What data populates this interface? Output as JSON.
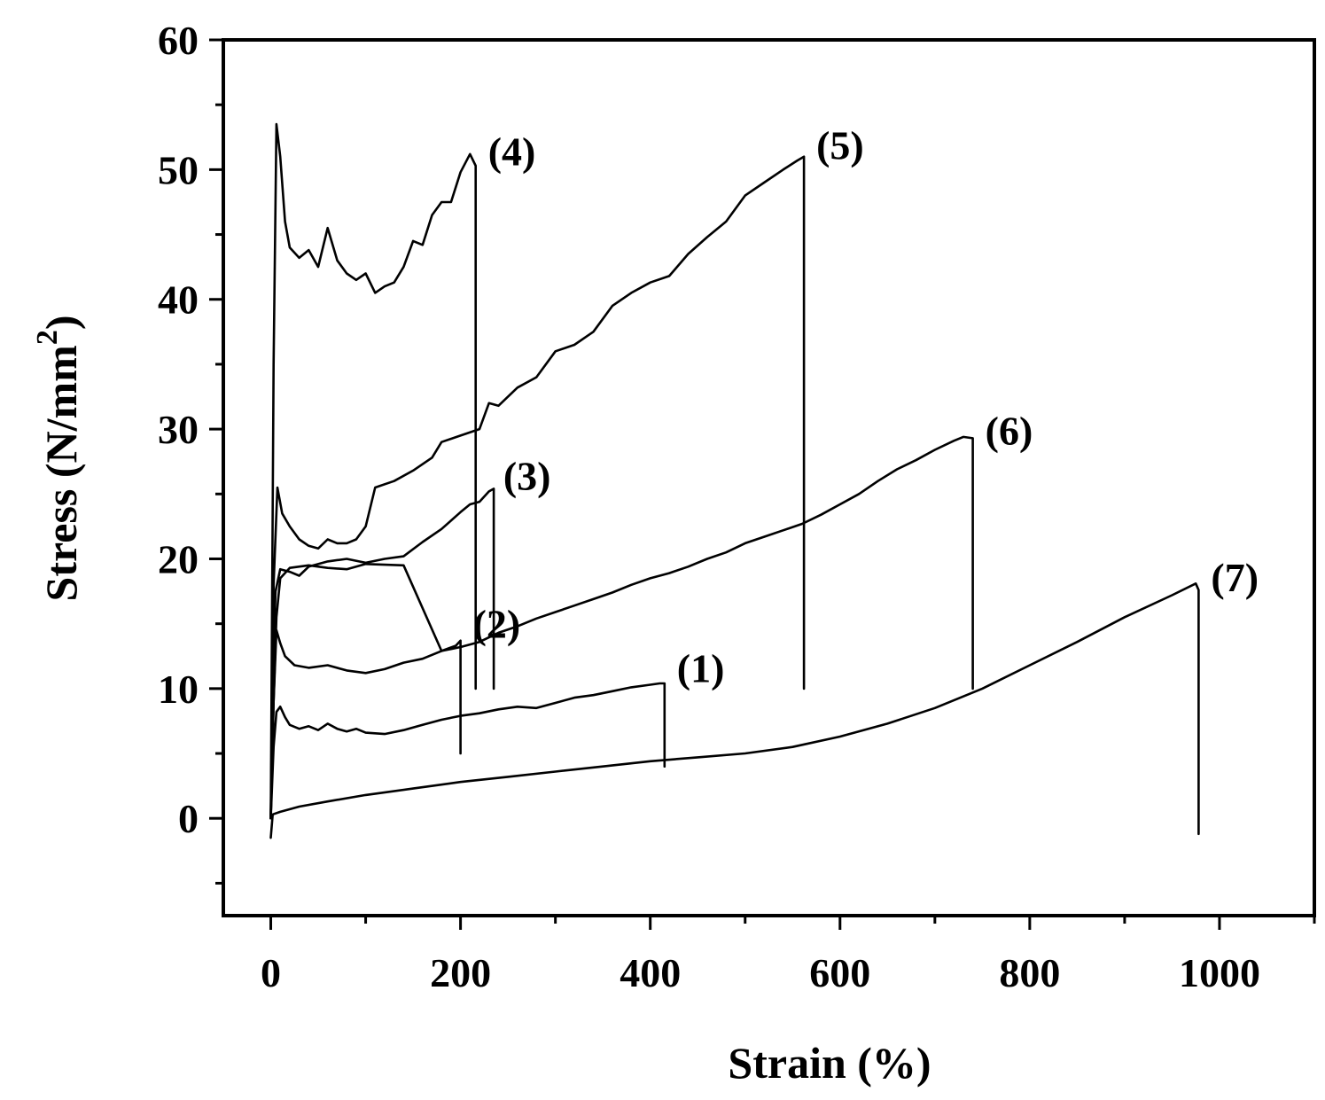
{
  "chart_data": {
    "type": "line",
    "xlabel": "Strain (%)",
    "ylabel_main": "Stress (N/mm",
    "ylabel_sup": "2",
    "ylabel_close": ")",
    "xlim": [
      -50,
      1100
    ],
    "ylim": [
      -7.5,
      60
    ],
    "xticks": [
      0,
      200,
      400,
      600,
      800,
      1000
    ],
    "yticks": [
      0,
      10,
      20,
      30,
      40,
      50,
      60
    ],
    "xticks_minor": [
      100,
      300,
      500,
      700,
      900,
      1100
    ],
    "yticks_minor": [
      -5,
      5,
      15,
      25,
      35,
      45,
      55
    ],
    "grid": false,
    "legend": "none",
    "color": "#000000",
    "series": [
      {
        "label": "(1)",
        "label_anchor": [
          415,
          11.2
        ],
        "points": [
          [
            0,
            0
          ],
          [
            3,
            5.5
          ],
          [
            6,
            8.2
          ],
          [
            10,
            8.6
          ],
          [
            15,
            7.8
          ],
          [
            20,
            7.2
          ],
          [
            30,
            6.9
          ],
          [
            40,
            7.1
          ],
          [
            50,
            6.8
          ],
          [
            60,
            7.3
          ],
          [
            70,
            6.9
          ],
          [
            80,
            6.7
          ],
          [
            90,
            6.9
          ],
          [
            100,
            6.6
          ],
          [
            120,
            6.5
          ],
          [
            140,
            6.8
          ],
          [
            160,
            7.2
          ],
          [
            180,
            7.6
          ],
          [
            200,
            7.9
          ],
          [
            220,
            8.1
          ],
          [
            240,
            8.4
          ],
          [
            260,
            8.6
          ],
          [
            280,
            8.5
          ],
          [
            300,
            8.9
          ],
          [
            320,
            9.3
          ],
          [
            340,
            9.5
          ],
          [
            360,
            9.8
          ],
          [
            380,
            10.1
          ],
          [
            400,
            10.3
          ],
          [
            410,
            10.4
          ],
          [
            415,
            10.4
          ],
          [
            415,
            4.0
          ]
        ]
      },
      {
        "label": "(2)",
        "label_anchor": [
          200,
          14.6
        ],
        "points": [
          [
            0,
            0
          ],
          [
            3,
            9
          ],
          [
            6,
            14.5
          ],
          [
            10,
            13.5
          ],
          [
            15,
            12.5
          ],
          [
            25,
            11.8
          ],
          [
            40,
            11.6
          ],
          [
            60,
            11.8
          ],
          [
            80,
            11.4
          ],
          [
            100,
            11.2
          ],
          [
            120,
            11.5
          ],
          [
            140,
            12.0
          ],
          [
            160,
            12.3
          ],
          [
            180,
            12.9
          ],
          [
            195,
            13.3
          ],
          [
            200,
            13.7
          ],
          [
            200,
            5.0
          ]
        ]
      },
      {
        "label": "(3)",
        "label_anchor": [
          232,
          26.0
        ],
        "points": [
          [
            0,
            0
          ],
          [
            3,
            13
          ],
          [
            5,
            17.5
          ],
          [
            10,
            19.2
          ],
          [
            20,
            19.0
          ],
          [
            30,
            18.7
          ],
          [
            40,
            19.4
          ],
          [
            60,
            19.8
          ],
          [
            80,
            20.0
          ],
          [
            100,
            19.7
          ],
          [
            120,
            20.0
          ],
          [
            140,
            20.2
          ],
          [
            160,
            21.3
          ],
          [
            180,
            22.3
          ],
          [
            200,
            23.6
          ],
          [
            210,
            24.2
          ],
          [
            220,
            24.4
          ],
          [
            230,
            25.2
          ],
          [
            235,
            25.4
          ],
          [
            235,
            10.0
          ]
        ]
      },
      {
        "label": "(4)",
        "label_anchor": [
          216,
          51.0
        ],
        "points": [
          [
            0,
            0
          ],
          [
            3,
            35
          ],
          [
            6,
            53.5
          ],
          [
            10,
            51.0
          ],
          [
            15,
            46.0
          ],
          [
            20,
            44.0
          ],
          [
            30,
            43.2
          ],
          [
            40,
            43.8
          ],
          [
            50,
            42.5
          ],
          [
            60,
            45.5
          ],
          [
            70,
            43.0
          ],
          [
            80,
            42.0
          ],
          [
            90,
            41.5
          ],
          [
            100,
            42.0
          ],
          [
            110,
            40.5
          ],
          [
            120,
            41.0
          ],
          [
            130,
            41.3
          ],
          [
            140,
            42.5
          ],
          [
            150,
            44.5
          ],
          [
            160,
            44.2
          ],
          [
            170,
            46.5
          ],
          [
            180,
            47.5
          ],
          [
            190,
            47.5
          ],
          [
            200,
            49.8
          ],
          [
            210,
            51.2
          ],
          [
            216,
            50.3
          ],
          [
            216,
            10.0
          ]
        ]
      },
      {
        "label": "(5)",
        "label_anchor": [
          562,
          51.5
        ],
        "points": [
          [
            0,
            0
          ],
          [
            3,
            18
          ],
          [
            7,
            25.5
          ],
          [
            12,
            23.5
          ],
          [
            20,
            22.5
          ],
          [
            30,
            21.5
          ],
          [
            40,
            21.0
          ],
          [
            50,
            20.8
          ],
          [
            60,
            21.5
          ],
          [
            70,
            21.2
          ],
          [
            80,
            21.2
          ],
          [
            90,
            21.5
          ],
          [
            100,
            22.5
          ],
          [
            110,
            25.5
          ],
          [
            130,
            26.0
          ],
          [
            150,
            26.8
          ],
          [
            170,
            27.8
          ],
          [
            180,
            29.0
          ],
          [
            200,
            29.5
          ],
          [
            220,
            30.0
          ],
          [
            230,
            32.0
          ],
          [
            240,
            31.8
          ],
          [
            260,
            33.2
          ],
          [
            280,
            34.0
          ],
          [
            300,
            36.0
          ],
          [
            320,
            36.5
          ],
          [
            340,
            37.5
          ],
          [
            360,
            39.5
          ],
          [
            380,
            40.5
          ],
          [
            400,
            41.3
          ],
          [
            420,
            41.8
          ],
          [
            440,
            43.5
          ],
          [
            460,
            44.8
          ],
          [
            480,
            46.0
          ],
          [
            500,
            48.0
          ],
          [
            520,
            49.0
          ],
          [
            540,
            50.0
          ],
          [
            555,
            50.7
          ],
          [
            562,
            51.0
          ],
          [
            562,
            10.0
          ]
        ]
      },
      {
        "label": "(6)",
        "label_anchor": [
          740,
          29.5
        ],
        "points": [
          [
            0,
            0
          ],
          [
            3,
            9
          ],
          [
            6,
            15.5
          ],
          [
            10,
            18.5
          ],
          [
            20,
            19.3
          ],
          [
            40,
            19.5
          ],
          [
            60,
            19.3
          ],
          [
            80,
            19.2
          ],
          [
            100,
            19.6
          ],
          [
            140,
            19.5
          ],
          [
            180,
            12.9
          ],
          [
            200,
            13.2
          ],
          [
            220,
            13.6
          ],
          [
            240,
            14.3
          ],
          [
            260,
            14.8
          ],
          [
            280,
            15.4
          ],
          [
            300,
            15.9
          ],
          [
            320,
            16.4
          ],
          [
            340,
            16.9
          ],
          [
            360,
            17.4
          ],
          [
            380,
            18.0
          ],
          [
            400,
            18.5
          ],
          [
            420,
            18.9
          ],
          [
            440,
            19.4
          ],
          [
            460,
            20.0
          ],
          [
            480,
            20.5
          ],
          [
            500,
            21.2
          ],
          [
            520,
            21.7
          ],
          [
            540,
            22.2
          ],
          [
            560,
            22.7
          ],
          [
            580,
            23.4
          ],
          [
            600,
            24.2
          ],
          [
            620,
            25.0
          ],
          [
            640,
            26.0
          ],
          [
            660,
            26.9
          ],
          [
            680,
            27.6
          ],
          [
            700,
            28.4
          ],
          [
            720,
            29.1
          ],
          [
            730,
            29.4
          ],
          [
            740,
            29.3
          ],
          [
            740,
            10.0
          ]
        ]
      },
      {
        "label": "(7)",
        "label_anchor": [
          978,
          18.2
        ],
        "points": [
          [
            0,
            -1.5
          ],
          [
            2,
            0.3
          ],
          [
            10,
            0.5
          ],
          [
            30,
            0.9
          ],
          [
            60,
            1.3
          ],
          [
            100,
            1.8
          ],
          [
            150,
            2.3
          ],
          [
            200,
            2.8
          ],
          [
            250,
            3.2
          ],
          [
            300,
            3.6
          ],
          [
            350,
            4.0
          ],
          [
            400,
            4.4
          ],
          [
            450,
            4.7
          ],
          [
            500,
            5.0
          ],
          [
            550,
            5.5
          ],
          [
            600,
            6.3
          ],
          [
            650,
            7.3
          ],
          [
            700,
            8.5
          ],
          [
            750,
            10.0
          ],
          [
            800,
            11.8
          ],
          [
            850,
            13.6
          ],
          [
            900,
            15.5
          ],
          [
            950,
            17.2
          ],
          [
            975,
            18.1
          ],
          [
            978,
            17.6
          ],
          [
            978,
            -1.2
          ]
        ]
      }
    ]
  }
}
